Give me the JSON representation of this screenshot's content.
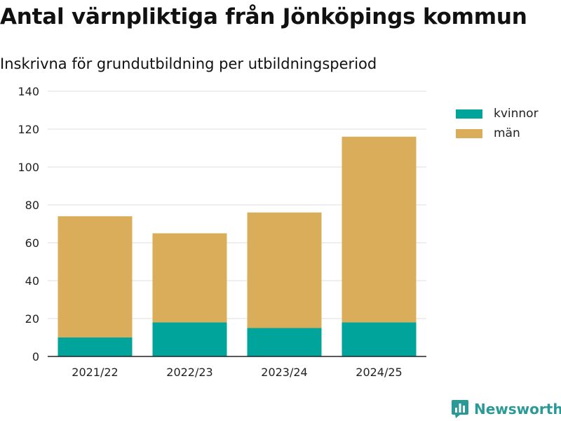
{
  "title": "Antal värnpliktiga från Jönköpings kommun",
  "subtitle": "Inskrivna för grundutbildning per utbildningsperiod",
  "brand": {
    "name": "Newsworthy"
  },
  "colors": {
    "kvinnor": "#00a49a",
    "man": "#d9ad5a",
    "grid": "#dddddd",
    "axis": "#222222",
    "brand": "#2b9a96"
  },
  "chart_data": {
    "type": "bar",
    "stacked": true,
    "title": "Antal värnpliktiga från Jönköpings kommun",
    "subtitle": "Inskrivna för grundutbildning per utbildningsperiod",
    "categories": [
      "2021/22",
      "2022/23",
      "2023/24",
      "2024/25"
    ],
    "series": [
      {
        "name": "kvinnor",
        "color": "#00a49a",
        "values": [
          10,
          18,
          15,
          18
        ]
      },
      {
        "name": "män",
        "color": "#d9ad5a",
        "values": [
          64,
          47,
          61,
          98
        ]
      }
    ],
    "xlabel": "",
    "ylabel": "",
    "ylim": [
      0,
      140
    ],
    "yticks": [
      0,
      20,
      40,
      60,
      80,
      100,
      120,
      140
    ],
    "grid": true,
    "legend_position": "top-right"
  }
}
